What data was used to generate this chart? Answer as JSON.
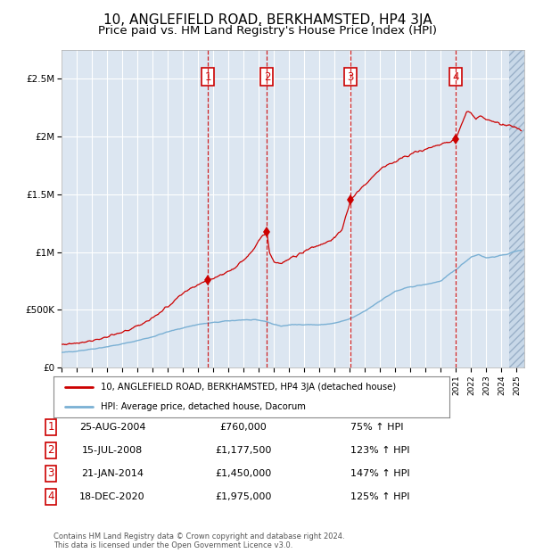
{
  "title": "10, ANGLEFIELD ROAD, BERKHAMSTED, HP4 3JA",
  "subtitle": "Price paid vs. HM Land Registry's House Price Index (HPI)",
  "ylabel_ticks": [
    "£0",
    "£500K",
    "£1M",
    "£1.5M",
    "£2M",
    "£2.5M"
  ],
  "ytick_values": [
    0,
    500000,
    1000000,
    1500000,
    2000000,
    2500000
  ],
  "ylim": [
    0,
    2750000
  ],
  "xlim_start": 1995.0,
  "xlim_end": 2025.5,
  "sale_dates": [
    2004.65,
    2008.54,
    2014.06,
    2020.96
  ],
  "sale_prices": [
    760000,
    1177500,
    1450000,
    1975000
  ],
  "sale_labels": [
    "1",
    "2",
    "3",
    "4"
  ],
  "sale_date_strs": [
    "25-AUG-2004",
    "15-JUL-2008",
    "21-JAN-2014",
    "18-DEC-2020"
  ],
  "sale_price_strs": [
    "£760,000",
    "£1,177,500",
    "£1,450,000",
    "£1,975,000"
  ],
  "sale_pct_strs": [
    "75% ↑ HPI",
    "123% ↑ HPI",
    "147% ↑ HPI",
    "125% ↑ HPI"
  ],
  "legend_line1": "10, ANGLEFIELD ROAD, BERKHAMSTED, HP4 3JA (detached house)",
  "legend_line2": "HPI: Average price, detached house, Dacorum",
  "footer1": "Contains HM Land Registry data © Crown copyright and database right 2024.",
  "footer2": "This data is licensed under the Open Government Licence v3.0.",
  "line_color_red": "#cc0000",
  "line_color_blue": "#7ab0d4",
  "bg_color_chart": "#dce6f1",
  "bg_color_hatch": "#c8d8e8",
  "grid_color": "#ffffff",
  "dashed_line_color": "#cc0000",
  "box_color": "#cc0000",
  "title_fontsize": 11,
  "subtitle_fontsize": 9.5,
  "fig_width": 6.0,
  "fig_height": 6.2,
  "fig_dpi": 100
}
